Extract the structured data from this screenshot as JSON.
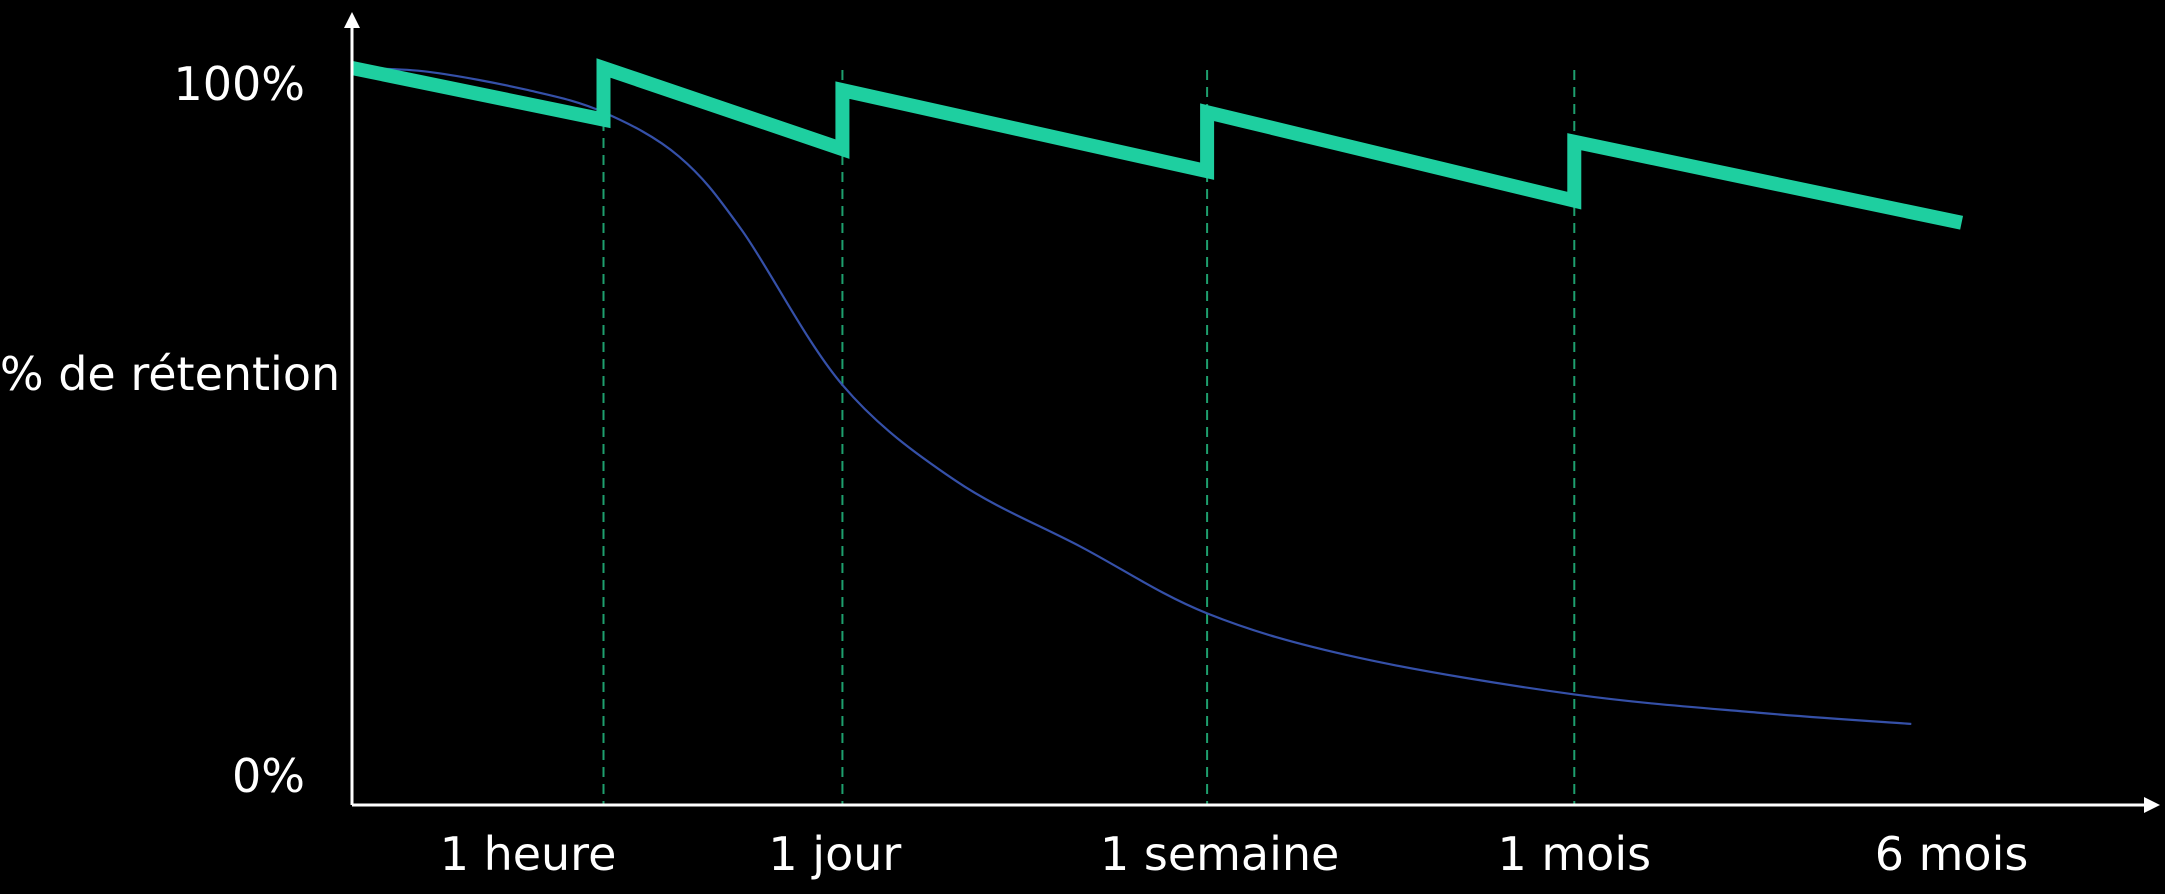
{
  "chart_data": {
    "type": "line",
    "title": "",
    "ylabel": "% de rétention",
    "xlabel": "",
    "y_ticks": [
      "100%",
      "0%"
    ],
    "ylim": [
      0,
      100
    ],
    "x_ticks": [
      "1 heure",
      "1 jour",
      "1 semaine",
      "1 mois",
      "6 mois"
    ],
    "review_points": [
      "1 heure",
      "1 jour",
      "1 semaine",
      "1 mois"
    ],
    "series": [
      {
        "color": "#1ECFA0",
        "style": "thick",
        "points": [
          {
            "t": 0.0,
            "y": 100
          },
          {
            "t": 1.0,
            "y": 93
          },
          {
            "t": 1.0,
            "y": 100
          },
          {
            "t": 1.95,
            "y": 89
          },
          {
            "t": 1.95,
            "y": 97
          },
          {
            "t": 3.4,
            "y": 86
          },
          {
            "t": 3.4,
            "y": 94
          },
          {
            "t": 4.86,
            "y": 82
          },
          {
            "t": 4.86,
            "y": 90
          },
          {
            "t": 6.4,
            "y": 79
          }
        ]
      },
      {
        "color": "#3550A8",
        "style": "thin",
        "points": [
          {
            "t": 0.0,
            "y": 100
          },
          {
            "t": 0.3,
            "y": 99.5
          },
          {
            "t": 0.7,
            "y": 97
          },
          {
            "t": 1.0,
            "y": 94
          },
          {
            "t": 1.3,
            "y": 88
          },
          {
            "t": 1.55,
            "y": 78
          },
          {
            "t": 1.95,
            "y": 57
          },
          {
            "t": 2.4,
            "y": 44
          },
          {
            "t": 2.9,
            "y": 35
          },
          {
            "t": 3.4,
            "y": 26
          },
          {
            "t": 4.0,
            "y": 20
          },
          {
            "t": 4.86,
            "y": 15
          },
          {
            "t": 5.6,
            "y": 12.5
          },
          {
            "t": 6.2,
            "y": 11
          }
        ]
      }
    ],
    "grid": false,
    "review_line_color": "#1E9F6E",
    "axis_color": "#FFFFFF"
  }
}
